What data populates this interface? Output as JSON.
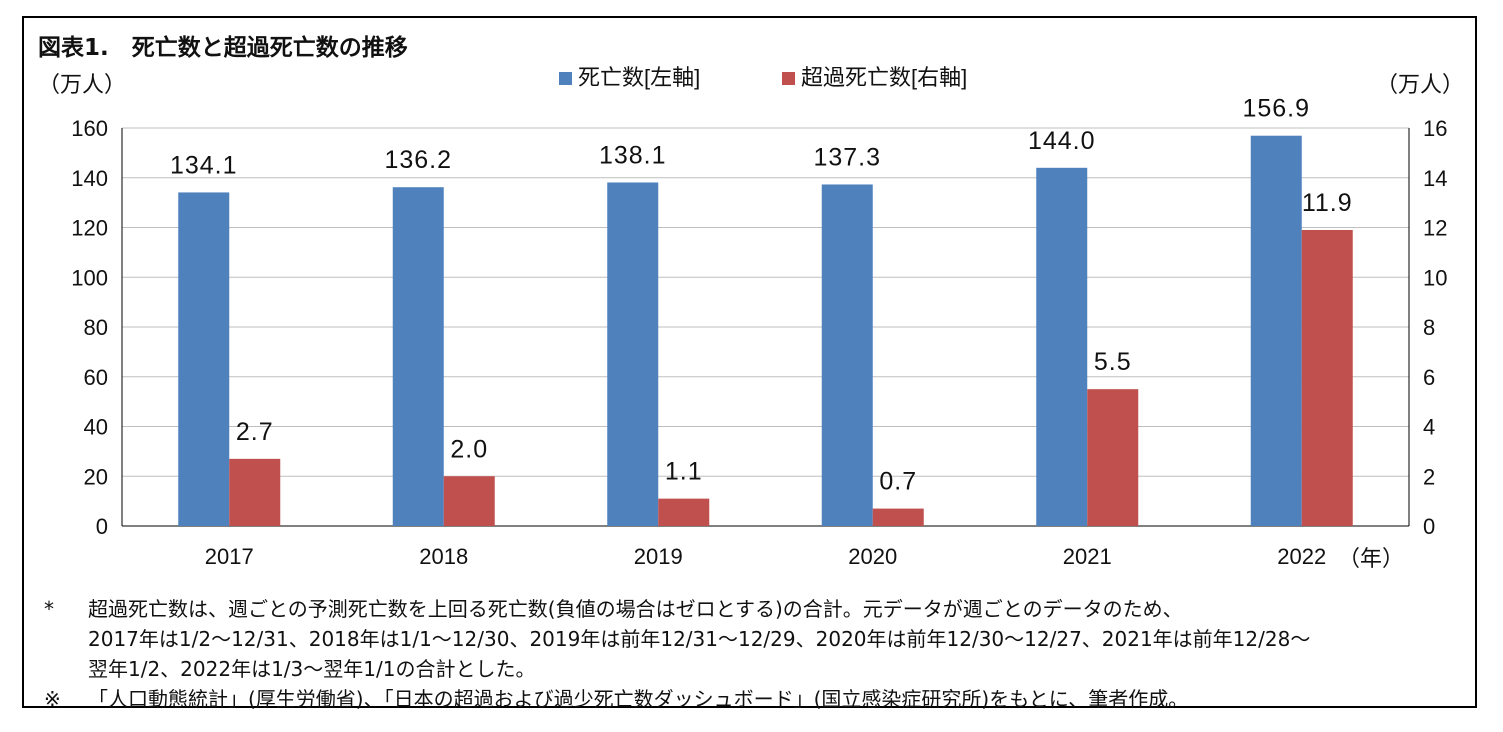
{
  "figure_title": "図表1.　死亡数と超過死亡数の推移",
  "colors": {
    "deaths": "#4f81bd",
    "excess": "#c0504d",
    "axis": "#000000",
    "grid": "#bfbfbf"
  },
  "chart_data": {
    "type": "bar",
    "title": "",
    "categories": [
      "2017",
      "2018",
      "2019",
      "2020",
      "2021",
      "2022"
    ],
    "xlabel": "（年）",
    "ylabel_left": "（万人）",
    "ylabel_right": "（万人）",
    "ylim_left": [
      0,
      160
    ],
    "ylim_right": [
      0,
      16
    ],
    "yticks_left": [
      "0",
      "20",
      "40",
      "60",
      "80",
      "100",
      "120",
      "140",
      "160"
    ],
    "yticks_right": [
      "0",
      "2",
      "4",
      "6",
      "8",
      "10",
      "12",
      "14",
      "16"
    ],
    "grid": true,
    "legend_position": "top-center",
    "series": [
      {
        "name": "死亡数[左軸]",
        "axis": "left",
        "color": "#4f81bd",
        "values": [
          134.1,
          136.2,
          138.1,
          137.3,
          144.0,
          156.9
        ],
        "labels": [
          "134.1",
          "136.2",
          "138.1",
          "137.3",
          "144.0",
          "156.9"
        ]
      },
      {
        "name": "超過死亡数[右軸]",
        "axis": "right",
        "color": "#c0504d",
        "values": [
          2.7,
          2.0,
          1.1,
          0.7,
          5.5,
          11.9
        ],
        "labels": [
          "2.7",
          "2.0",
          "1.1",
          "0.7",
          "5.5",
          "11.9"
        ]
      }
    ]
  },
  "notes": {
    "note1_mark": "*",
    "note1_line1": "超過死亡数は、週ごとの予測死亡数を上回る死亡数(負値の場合はゼロとする)の合計。元データが週ごとのデータのため、",
    "note1_line2": "2017年は1/2～12/31、2018年は1/1～12/30、2019年は前年12/31～12/29、2020年は前年12/30～12/27、2021年は前年12/28～",
    "note1_line3": "翌年1/2、2022年は1/3～翌年1/1の合計とした。",
    "note2_mark": "※",
    "note2_text": "「人口動態統計」(厚生労働省)、「日本の超過および過少死亡数ダッシュボード」(国立感染症研究所)をもとに、筆者作成。"
  }
}
